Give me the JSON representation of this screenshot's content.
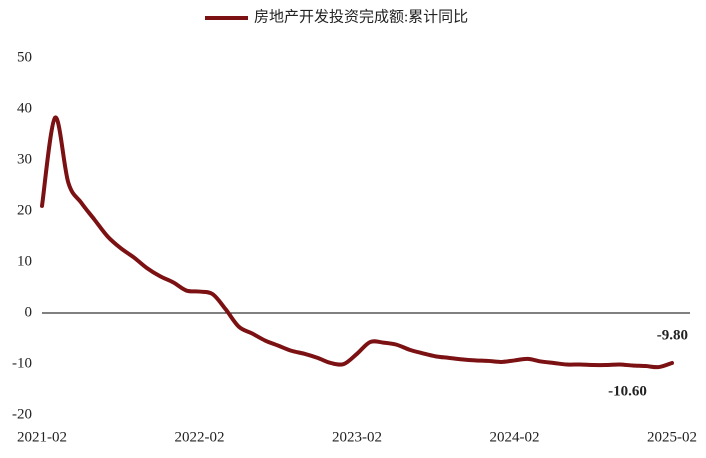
{
  "chart_data": {
    "type": "line",
    "categories": [
      "2021-02",
      null,
      null,
      null,
      null,
      null,
      null,
      null,
      null,
      null,
      null,
      null,
      "2022-02",
      null,
      null,
      null,
      null,
      null,
      null,
      null,
      null,
      null,
      null,
      null,
      "2023-02",
      null,
      null,
      null,
      null,
      null,
      null,
      null,
      null,
      null,
      null,
      null,
      "2024-02",
      null,
      null,
      null,
      null,
      null,
      null,
      null,
      null,
      null,
      null,
      null,
      "2025-02"
    ],
    "series": [
      {
        "name": "房地产开发投资完成额:累计同比",
        "color": "#7b1113",
        "values": [
          21,
          38.3,
          25.6,
          21.6,
          18.3,
          15.0,
          12.7,
          10.9,
          8.8,
          7.2,
          6.0,
          4.4,
          4.2,
          3.7,
          0.7,
          -2.7,
          -4.0,
          -5.4,
          -6.4,
          -7.4,
          -8.0,
          -8.8,
          -9.8,
          -10.0,
          -8.0,
          -5.7,
          -5.8,
          -6.2,
          -7.2,
          -7.9,
          -8.5,
          -8.8,
          -9.1,
          -9.3,
          -9.4,
          -9.6,
          -9.3,
          -9.0,
          -9.5,
          -9.8,
          -10.1,
          -10.1,
          -10.2,
          -10.2,
          -10.1,
          -10.3,
          -10.4,
          -10.6,
          -9.8
        ],
        "value_labels": [
          null,
          null,
          null,
          null,
          null,
          null,
          null,
          null,
          null,
          null,
          null,
          null,
          null,
          null,
          null,
          null,
          null,
          null,
          null,
          null,
          null,
          null,
          null,
          null,
          null,
          null,
          null,
          null,
          null,
          null,
          null,
          null,
          null,
          null,
          null,
          null,
          null,
          null,
          null,
          null,
          null,
          null,
          null,
          null,
          null,
          null,
          null,
          "-10.60",
          "-9.80"
        ]
      }
    ],
    "ylim": [
      -20,
      50
    ],
    "yticks": [
      -20,
      -10,
      0,
      10,
      20,
      30,
      40,
      50
    ],
    "grid": false
  }
}
